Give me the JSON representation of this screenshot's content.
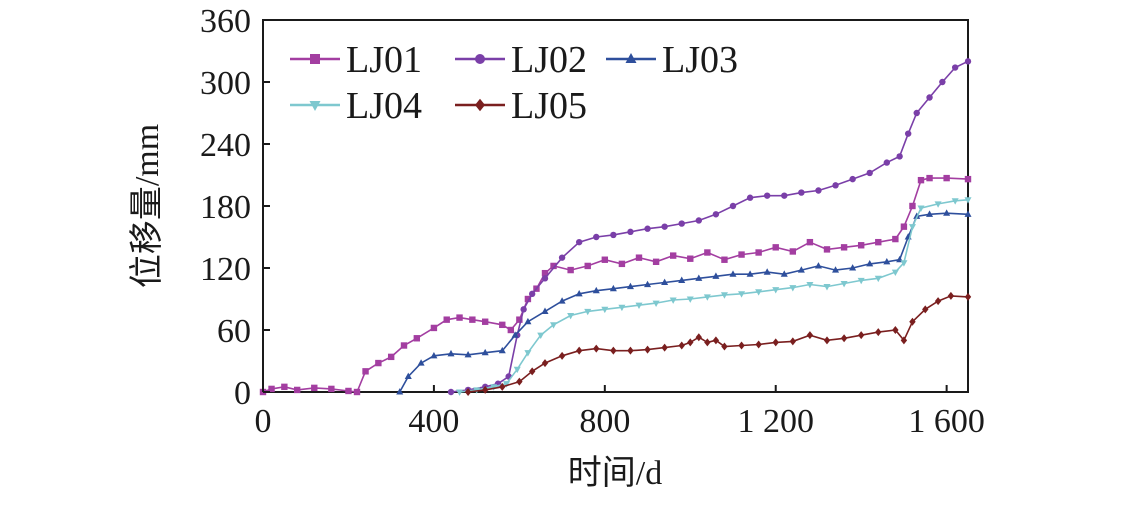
{
  "chart_data": {
    "type": "line",
    "title": "",
    "xlabel": "时间/d",
    "ylabel": "位移量/mm",
    "xlim": [
      0,
      1650
    ],
    "ylim": [
      0,
      360
    ],
    "x_ticks": [
      0,
      400,
      800,
      1200,
      1600
    ],
    "x_tick_labels": [
      "0",
      "400",
      "800",
      "1 200",
      "1 600"
    ],
    "y_ticks": [
      0,
      60,
      120,
      180,
      240,
      300,
      360
    ],
    "y_tick_labels": [
      "0",
      "60",
      "120",
      "180",
      "240",
      "300",
      "360"
    ],
    "grid": false,
    "legend_position": "top-left",
    "series": [
      {
        "name": "LJ01",
        "color": "#a33ea1",
        "marker": "square",
        "points": [
          [
            0,
            0
          ],
          [
            20,
            3
          ],
          [
            50,
            5
          ],
          [
            80,
            2
          ],
          [
            120,
            4
          ],
          [
            160,
            3
          ],
          [
            200,
            1
          ],
          [
            220,
            0
          ],
          [
            240,
            20
          ],
          [
            270,
            28
          ],
          [
            300,
            34
          ],
          [
            330,
            45
          ],
          [
            360,
            52
          ],
          [
            400,
            62
          ],
          [
            430,
            70
          ],
          [
            460,
            72
          ],
          [
            490,
            70
          ],
          [
            520,
            68
          ],
          [
            560,
            65
          ],
          [
            580,
            60
          ],
          [
            600,
            70
          ],
          [
            620,
            90
          ],
          [
            640,
            100
          ],
          [
            660,
            115
          ],
          [
            680,
            122
          ],
          [
            720,
            118
          ],
          [
            760,
            122
          ],
          [
            800,
            128
          ],
          [
            840,
            124
          ],
          [
            880,
            130
          ],
          [
            920,
            126
          ],
          [
            960,
            132
          ],
          [
            1000,
            129
          ],
          [
            1040,
            135
          ],
          [
            1080,
            128
          ],
          [
            1120,
            133
          ],
          [
            1160,
            135
          ],
          [
            1200,
            140
          ],
          [
            1240,
            136
          ],
          [
            1280,
            145
          ],
          [
            1320,
            138
          ],
          [
            1360,
            140
          ],
          [
            1400,
            142
          ],
          [
            1440,
            145
          ],
          [
            1480,
            148
          ],
          [
            1500,
            160
          ],
          [
            1520,
            180
          ],
          [
            1540,
            205
          ],
          [
            1560,
            207
          ],
          [
            1600,
            207
          ],
          [
            1650,
            206
          ]
        ]
      },
      {
        "name": "LJ02",
        "color": "#7a3fa8",
        "marker": "circle",
        "points": [
          [
            440,
            0
          ],
          [
            480,
            2
          ],
          [
            520,
            5
          ],
          [
            550,
            8
          ],
          [
            575,
            15
          ],
          [
            595,
            55
          ],
          [
            610,
            80
          ],
          [
            630,
            95
          ],
          [
            660,
            110
          ],
          [
            700,
            130
          ],
          [
            740,
            145
          ],
          [
            780,
            150
          ],
          [
            820,
            152
          ],
          [
            860,
            155
          ],
          [
            900,
            158
          ],
          [
            940,
            160
          ],
          [
            980,
            163
          ],
          [
            1020,
            166
          ],
          [
            1060,
            172
          ],
          [
            1100,
            180
          ],
          [
            1140,
            188
          ],
          [
            1180,
            190
          ],
          [
            1220,
            190
          ],
          [
            1260,
            193
          ],
          [
            1300,
            195
          ],
          [
            1340,
            200
          ],
          [
            1380,
            206
          ],
          [
            1420,
            212
          ],
          [
            1460,
            222
          ],
          [
            1490,
            228
          ],
          [
            1510,
            250
          ],
          [
            1530,
            270
          ],
          [
            1560,
            285
          ],
          [
            1590,
            300
          ],
          [
            1620,
            314
          ],
          [
            1650,
            320
          ]
        ]
      },
      {
        "name": "LJ03",
        "color": "#2e4f9c",
        "marker": "triangle-up",
        "points": [
          [
            320,
            0
          ],
          [
            340,
            15
          ],
          [
            370,
            28
          ],
          [
            400,
            35
          ],
          [
            440,
            37
          ],
          [
            480,
            36
          ],
          [
            520,
            38
          ],
          [
            560,
            40
          ],
          [
            590,
            55
          ],
          [
            620,
            68
          ],
          [
            660,
            78
          ],
          [
            700,
            88
          ],
          [
            740,
            95
          ],
          [
            780,
            98
          ],
          [
            820,
            100
          ],
          [
            860,
            102
          ],
          [
            900,
            104
          ],
          [
            940,
            106
          ],
          [
            980,
            108
          ],
          [
            1020,
            110
          ],
          [
            1060,
            112
          ],
          [
            1100,
            114
          ],
          [
            1140,
            114
          ],
          [
            1180,
            116
          ],
          [
            1220,
            114
          ],
          [
            1260,
            118
          ],
          [
            1300,
            122
          ],
          [
            1340,
            118
          ],
          [
            1380,
            120
          ],
          [
            1420,
            124
          ],
          [
            1460,
            126
          ],
          [
            1490,
            128
          ],
          [
            1510,
            150
          ],
          [
            1530,
            170
          ],
          [
            1560,
            172
          ],
          [
            1600,
            173
          ],
          [
            1650,
            172
          ]
        ]
      },
      {
        "name": "LJ04",
        "color": "#7ec8cf",
        "marker": "triangle-down",
        "points": [
          [
            460,
            0
          ],
          [
            500,
            2
          ],
          [
            540,
            5
          ],
          [
            570,
            8
          ],
          [
            595,
            22
          ],
          [
            620,
            38
          ],
          [
            650,
            55
          ],
          [
            680,
            65
          ],
          [
            720,
            74
          ],
          [
            760,
            78
          ],
          [
            800,
            80
          ],
          [
            840,
            82
          ],
          [
            880,
            84
          ],
          [
            920,
            86
          ],
          [
            960,
            89
          ],
          [
            1000,
            90
          ],
          [
            1040,
            92
          ],
          [
            1080,
            94
          ],
          [
            1120,
            95
          ],
          [
            1160,
            97
          ],
          [
            1200,
            99
          ],
          [
            1240,
            101
          ],
          [
            1280,
            104
          ],
          [
            1320,
            102
          ],
          [
            1360,
            105
          ],
          [
            1400,
            108
          ],
          [
            1440,
            110
          ],
          [
            1480,
            116
          ],
          [
            1500,
            125
          ],
          [
            1520,
            160
          ],
          [
            1540,
            178
          ],
          [
            1580,
            182
          ],
          [
            1620,
            185
          ],
          [
            1650,
            186
          ]
        ]
      },
      {
        "name": "LJ05",
        "color": "#7a1f1f",
        "marker": "diamond",
        "points": [
          [
            480,
            0
          ],
          [
            520,
            2
          ],
          [
            560,
            5
          ],
          [
            600,
            10
          ],
          [
            630,
            20
          ],
          [
            660,
            28
          ],
          [
            700,
            35
          ],
          [
            740,
            40
          ],
          [
            780,
            42
          ],
          [
            820,
            40
          ],
          [
            860,
            40
          ],
          [
            900,
            41
          ],
          [
            940,
            43
          ],
          [
            980,
            45
          ],
          [
            1000,
            48
          ],
          [
            1020,
            53
          ],
          [
            1040,
            48
          ],
          [
            1060,
            50
          ],
          [
            1080,
            44
          ],
          [
            1120,
            45
          ],
          [
            1160,
            46
          ],
          [
            1200,
            48
          ],
          [
            1240,
            49
          ],
          [
            1280,
            55
          ],
          [
            1320,
            50
          ],
          [
            1360,
            52
          ],
          [
            1400,
            55
          ],
          [
            1440,
            58
          ],
          [
            1480,
            60
          ],
          [
            1500,
            50
          ],
          [
            1520,
            68
          ],
          [
            1550,
            80
          ],
          [
            1580,
            88
          ],
          [
            1610,
            93
          ],
          [
            1650,
            92
          ]
        ]
      }
    ]
  }
}
